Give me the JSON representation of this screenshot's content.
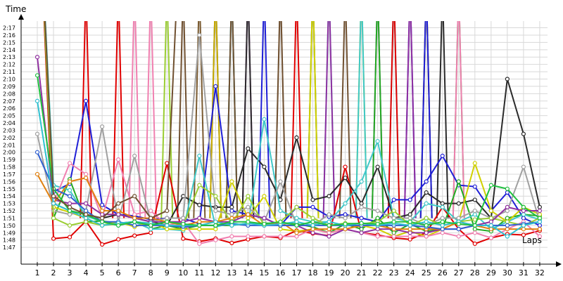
{
  "chart_data": {
    "type": "line",
    "title": "",
    "ylabel": "Time",
    "xlabel": "Laps",
    "x": [
      1,
      2,
      3,
      4,
      5,
      6,
      7,
      8,
      9,
      10,
      11,
      12,
      13,
      14,
      15,
      16,
      17,
      18,
      19,
      20,
      21,
      22,
      23,
      24,
      25,
      26,
      27,
      28,
      29,
      30,
      31,
      32
    ],
    "ylim_seconds": [
      105,
      140
    ],
    "yticks": [
      "1:47",
      "1:48",
      "1:49",
      "1:50",
      "1:51",
      "1:52",
      "1:53",
      "1:54",
      "1:55",
      "1:56",
      "1:57",
      "1:58",
      "1:59",
      "2:00",
      "2:01",
      "2:02",
      "2:03",
      "2:04",
      "2:05",
      "2:06",
      "2:07",
      "2:08",
      "2:09",
      "2:10",
      "2:11",
      "2:12",
      "2:13",
      "2:14",
      "2:15",
      "2:16",
      "2:17"
    ],
    "grid": true,
    "legend": "none",
    "series": [
      {
        "color": "#e00000",
        "values": [
          160,
          108.2,
          108.4,
          110.6,
          107.4,
          108.1,
          108.6,
          109.0,
          118.5,
          108.2,
          107.8,
          108.2,
          107.6,
          108.1,
          108.5,
          108.3,
          109.3,
          108.9,
          108.6,
          118.0,
          109.0,
          108.7,
          108.3,
          108.1,
          109.0,
          112.5,
          109.5,
          107.5,
          108.3,
          108.8,
          108.7,
          109.3
        ]
      },
      {
        "color": "#1f1fd6",
        "values": [
          160,
          114.6,
          115.7,
          127.0,
          112.8,
          111.5,
          111.3,
          110.8,
          111.0,
          111.0,
          110.2,
          129.0,
          112.0,
          111.5,
          111.0,
          110.0,
          112.5,
          112.5,
          111.2,
          111.5,
          111.0,
          110.5,
          113.5,
          113.5,
          116.0,
          119.5,
          115.5,
          115.3,
          112.0,
          114.5,
          111.0,
          110.0
        ]
      },
      {
        "color": "#2a2a2a",
        "values": [
          160,
          113.0,
          112.0,
          111.5,
          111.0,
          111.5,
          111.0,
          110.5,
          110.0,
          114.0,
          112.8,
          112.5,
          112.5,
          120.5,
          118.0,
          113.5,
          122.0,
          113.5,
          114.0,
          116.5,
          113.0,
          118.0,
          111.0,
          111.5,
          114.5,
          113.0,
          113.0,
          113.5,
          111.0,
          130.0,
          122.5,
          112.5
        ]
      },
      {
        "color": "#22aa22",
        "values": [
          160,
          111.0,
          116.3,
          110.5,
          110.6,
          110.3,
          110.5,
          109.5,
          110.0,
          109.5,
          110.0,
          110.0,
          110.0,
          110.3,
          110.3,
          110.3,
          110.2,
          109.8,
          109.0,
          110.2,
          109.5,
          111.0,
          109.0,
          110.2,
          109.2,
          109.5,
          116.0,
          109.5,
          109.2,
          111.0,
          111.5,
          111.3
        ]
      },
      {
        "color": "#40c8c8",
        "values": [
          160,
          115.5,
          114.8,
          111.3,
          110.5,
          110.0,
          110.5,
          109.5,
          109.5,
          109.3,
          119.5,
          109.8,
          110.3,
          110.0,
          124.5,
          112.0,
          111.0,
          110.5,
          110.5,
          113.0,
          116.0,
          121.5,
          111.0,
          110.5,
          113.0,
          112.5,
          110.5,
          111.5,
          109.5,
          110.5,
          111.5,
          110.8
        ]
      },
      {
        "color": "#d0d000",
        "values": [
          160,
          112.5,
          111.8,
          111.0,
          110.0,
          110.5,
          109.8,
          110.5,
          109.5,
          109.5,
          109.5,
          109.5,
          116.0,
          111.0,
          114.0,
          109.5,
          109.2,
          109.5,
          109.0,
          109.5,
          110.0,
          109.5,
          108.5,
          109.2,
          108.5,
          109.5,
          110.5,
          118.5,
          112.0,
          110.5,
          112.5,
          111.5
        ]
      },
      {
        "color": "#f080b0",
        "values": [
          160,
          113.0,
          118.5,
          117.0,
          111.0,
          119.0,
          111.5,
          112.0,
          110.0,
          110.5,
          107.5,
          108.0,
          108.5,
          108.5,
          108.5,
          108.5,
          108.5,
          109.5,
          109.0,
          109.5,
          109.0,
          108.5,
          108.5,
          108.5,
          108.5,
          109.0,
          108.5,
          109.0,
          108.3,
          109.5,
          110.5,
          108.5
        ]
      },
      {
        "color": "#a0a0a0",
        "values": [
          122.5,
          112.0,
          111.5,
          112.0,
          123.5,
          110.5,
          119.5,
          110.5,
          111.0,
          111.0,
          136.0,
          112.0,
          111.5,
          112.5,
          110.5,
          116.0,
          110.0,
          110.0,
          111.5,
          111.0,
          112.5,
          112.0,
          111.0,
          111.0,
          110.0,
          111.0,
          111.0,
          112.0,
          111.0,
          112.0,
          118.0,
          110.5
        ]
      },
      {
        "color": "#9acd32",
        "values": [
          160,
          111.0,
          110.0,
          110.5,
          110.0,
          110.2,
          110.5,
          110.2,
          110.0,
          110.0,
          115.5,
          114.0,
          110.2,
          114.0,
          110.0,
          110.5,
          112.5,
          111.0,
          110.0,
          110.3,
          110.2,
          110.5,
          112.0,
          110.0,
          111.0,
          110.0,
          110.5,
          110.8,
          111.0,
          110.5,
          110.0,
          111.0
        ]
      },
      {
        "color": "#9030a0",
        "values": [
          133.0,
          113.5,
          113.0,
          113.0,
          111.5,
          111.5,
          111.0,
          110.5,
          110.5,
          110.5,
          111.0,
          110.5,
          110.5,
          111.5,
          111.0,
          110.0,
          110.0,
          109.0,
          108.5,
          109.5,
          109.0,
          109.5,
          109.5,
          109.0,
          109.0,
          109.5,
          109.5,
          110.0,
          110.5,
          112.5,
          112.0,
          112.0
        ]
      },
      {
        "color": "#e08010",
        "values": [
          117.0,
          113.0,
          116.0,
          116.5,
          112.0,
          112.0,
          111.0,
          111.0,
          110.5,
          110.0,
          110.5,
          110.5,
          111.0,
          111.5,
          110.0,
          110.5,
          109.0,
          109.5,
          109.5,
          109.5,
          110.0,
          110.0,
          109.5,
          109.5,
          109.5,
          109.5,
          110.5,
          110.0,
          109.5,
          109.5,
          109.5,
          109.5
        ]
      },
      {
        "color": "#3060d0",
        "values": [
          120.0,
          115.0,
          114.0,
          112.0,
          110.5,
          110.5,
          110.0,
          110.0,
          110.0,
          109.8,
          110.0,
          110.0,
          110.2,
          110.0,
          110.0,
          110.0,
          110.0,
          110.0,
          110.0,
          110.0,
          110.0,
          110.0,
          110.0,
          110.0,
          109.8,
          109.5,
          109.5,
          110.0,
          110.0,
          110.0,
          110.2,
          110.5
        ]
      },
      {
        "color": "#30c0d0",
        "values": [
          127.0,
          113.0,
          112.0,
          111.0,
          110.0,
          110.3,
          110.5,
          110.3,
          110.0,
          110.0,
          110.0,
          110.5,
          110.0,
          110.3,
          110.0,
          110.2,
          110.5,
          110.0,
          110.5,
          110.0,
          110.3,
          110.0,
          110.3,
          110.0,
          110.5,
          110.0,
          110.5,
          110.0,
          110.0,
          108.5,
          110.0,
          110.5
        ]
      },
      {
        "color": "#20c040",
        "values": [
          130.5,
          115.0,
          112.0,
          111.5,
          110.5,
          110.0,
          110.5,
          110.0,
          110.5,
          110.2,
          110.0,
          110.0,
          110.5,
          110.5,
          110.2,
          110.5,
          110.0,
          110.5,
          110.0,
          110.2,
          110.3,
          110.2,
          110.5,
          110.5,
          110.0,
          110.5,
          110.2,
          110.0,
          115.5,
          115.0,
          112.5,
          111.0
        ]
      },
      {
        "color": "#705030",
        "values": [
          160,
          114.0,
          112.5,
          111.5,
          111.0,
          113.0,
          114.0,
          111.0,
          112.0,
          160,
          160,
          160,
          160,
          160,
          160,
          160,
          160,
          160,
          160,
          160,
          160,
          160,
          160,
          160,
          160,
          160,
          160,
          160,
          160,
          160,
          160,
          160
        ]
      }
    ],
    "spikes": [
      {
        "color": "#e00000",
        "x": 4
      },
      {
        "color": "#e00000",
        "x": 6
      },
      {
        "color": "#f080b0",
        "x": 7
      },
      {
        "color": "#f080b0",
        "x": 8
      },
      {
        "color": "#9acd32",
        "x": 9
      },
      {
        "color": "#705030",
        "x": 10
      },
      {
        "color": "#7a5a30",
        "x": 11
      },
      {
        "color": "#1f1fd6",
        "x": 12
      },
      {
        "color": "#9acd32",
        "x": 12
      },
      {
        "color": "#c8a800",
        "x": 12
      },
      {
        "color": "#505050",
        "x": 13
      },
      {
        "color": "#40c8c8",
        "x": 13
      },
      {
        "color": "#705030",
        "x": 13
      },
      {
        "color": "#9030a0",
        "x": 14
      },
      {
        "color": "#2a2a2a",
        "x": 14
      },
      {
        "color": "#1f1fd6",
        "x": 15
      },
      {
        "color": "#a0a0a0",
        "x": 16
      },
      {
        "color": "#705030",
        "x": 16
      },
      {
        "color": "#e00000",
        "x": 17
      },
      {
        "color": "#1f1fd6",
        "x": 18
      },
      {
        "color": "#9acd32",
        "x": 18
      },
      {
        "color": "#d0d000",
        "x": 18
      },
      {
        "color": "#40c8c8",
        "x": 19
      },
      {
        "color": "#9030a0",
        "x": 19
      },
      {
        "color": "#705030",
        "x": 20
      },
      {
        "color": "#d0d000",
        "x": 21
      },
      {
        "color": "#40c8c8",
        "x": 21
      },
      {
        "color": "#9030a0",
        "x": 22
      },
      {
        "color": "#22aa22",
        "x": 22
      },
      {
        "color": "#40c8c8",
        "x": 23
      },
      {
        "color": "#e00000",
        "x": 23
      },
      {
        "color": "#1f1fd6",
        "x": 24
      },
      {
        "color": "#9030a0",
        "x": 24
      },
      {
        "color": "#d0d000",
        "x": 25
      },
      {
        "color": "#705030",
        "x": 25
      },
      {
        "color": "#1f1fd6",
        "x": 25
      },
      {
        "color": "#2a2a2a",
        "x": 26
      },
      {
        "color": "#22aa22",
        "x": 27
      },
      {
        "color": "#f080b0",
        "x": 27
      }
    ]
  }
}
